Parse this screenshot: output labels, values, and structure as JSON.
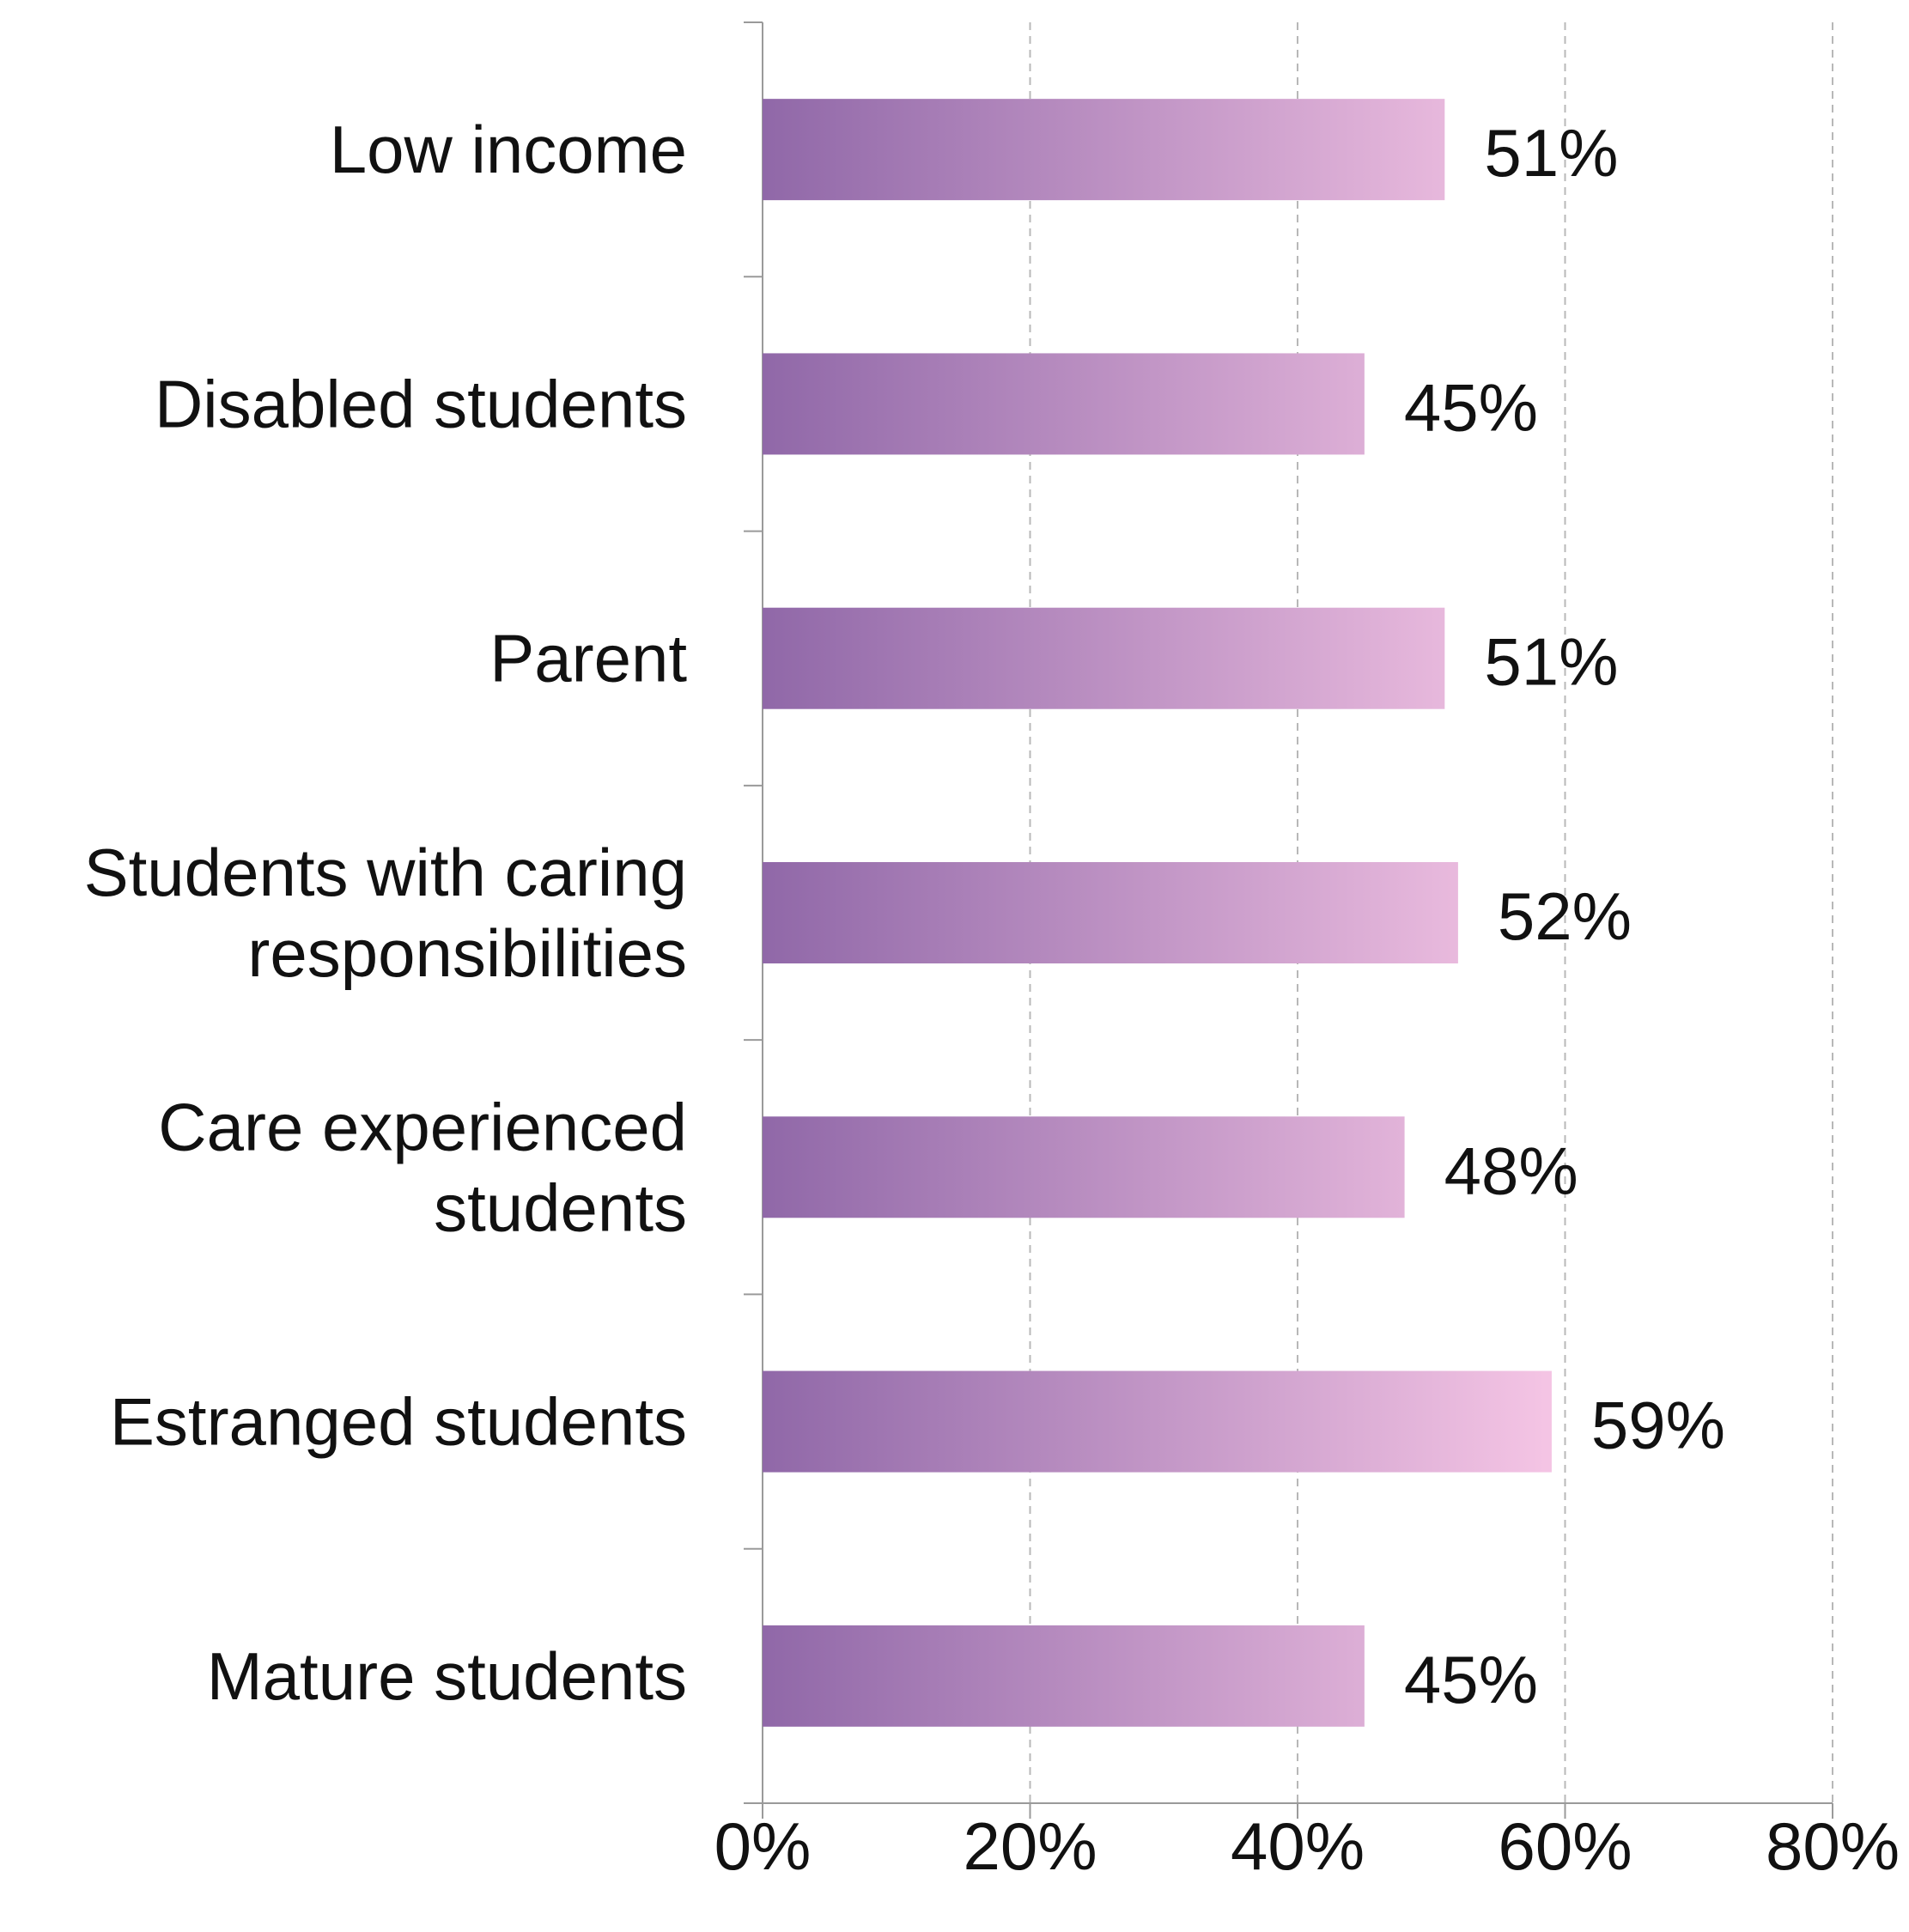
{
  "chart_data": {
    "type": "bar",
    "orientation": "horizontal",
    "categories": [
      "Low income",
      "Disabled students",
      "Parent",
      "Students with caring responsibilities",
      "Care experienced students",
      "Estranged students",
      "Mature students"
    ],
    "category_lines": [
      [
        "Low income"
      ],
      [
        "Disabled students"
      ],
      [
        "Parent"
      ],
      [
        "Students with caring",
        "responsibilities"
      ],
      [
        "Care experienced",
        "students"
      ],
      [
        "Estranged students"
      ],
      [
        "Mature students"
      ]
    ],
    "values": [
      51,
      45,
      51,
      52,
      48,
      59,
      45
    ],
    "value_labels": [
      "51%",
      "45%",
      "51%",
      "52%",
      "48%",
      "59%",
      "45%"
    ],
    "xlim": [
      0,
      80
    ],
    "x_ticks": [
      0,
      20,
      40,
      60,
      80
    ],
    "x_tick_labels": [
      "0%",
      "20%",
      "40%",
      "60%",
      "80%"
    ],
    "title": "",
    "xlabel": "",
    "ylabel": "",
    "grid": "vertical dashed",
    "legend": "none",
    "colors": {
      "bar_gradient_start": "#9068a8",
      "bar_gradient_end": "#f4c4e4",
      "axis": "#9a9a9a",
      "grid": "#b8b8b8",
      "text": "#111111"
    }
  }
}
